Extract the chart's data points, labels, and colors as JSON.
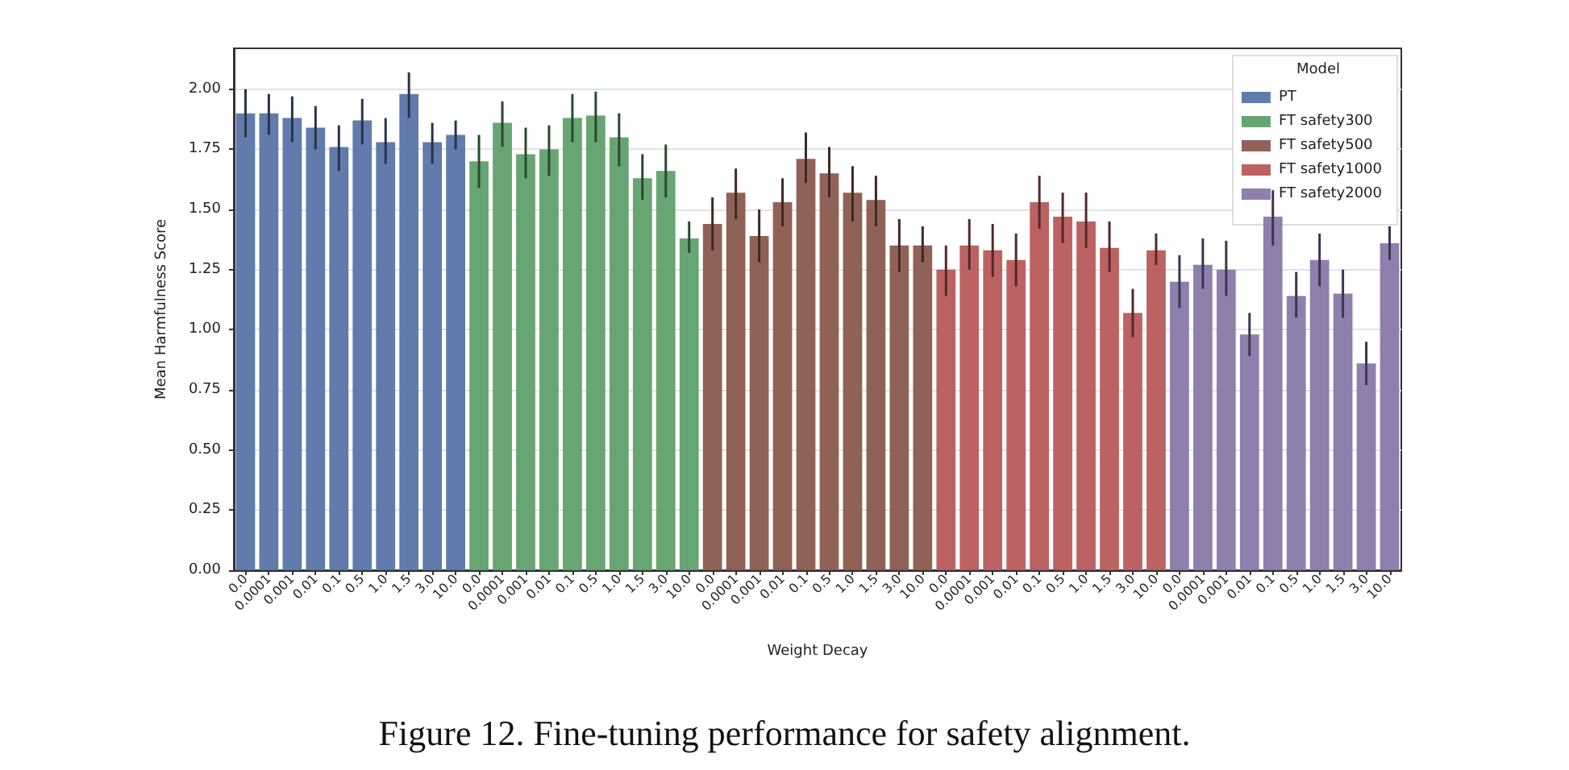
{
  "chart_data": {
    "type": "bar",
    "xlabel": "Weight Decay",
    "ylabel": "Mean Harmfulness Score",
    "legend_title": "Model",
    "legend": "top right",
    "grid": "y",
    "categories": [
      "0.0",
      "0.0001",
      "0.001",
      "0.01",
      "0.1",
      "0.5",
      "1.0",
      "1.5",
      "3.0",
      "10.0",
      "0.0",
      "0.0001",
      "0.001",
      "0.01",
      "0.1",
      "0.5",
      "1.0",
      "1.5",
      "3.0",
      "10.0",
      "0.0",
      "0.0001",
      "0.001",
      "0.01",
      "0.1",
      "0.5",
      "1.0",
      "1.5",
      "3.0",
      "10.0",
      "0.0",
      "0.0001",
      "0.001",
      "0.01",
      "0.1",
      "0.5",
      "1.0",
      "1.5",
      "3.0",
      "10.0",
      "0.0",
      "0.0001",
      "0.001",
      "0.01",
      "0.1",
      "0.5",
      "1.0",
      "1.5",
      "3.0",
      "10.0"
    ],
    "ylim": [
      0,
      2.17
    ],
    "yticks": [
      {
        "value": 0,
        "label": "0.00"
      },
      {
        "value": 0.25,
        "label": "0.25"
      },
      {
        "value": 0.5,
        "label": "0.50"
      },
      {
        "value": 0.75,
        "label": "0.75"
      },
      {
        "value": 1,
        "label": "1.00"
      },
      {
        "value": 1.25,
        "label": "1.25"
      },
      {
        "value": 1.5,
        "label": "1.50"
      },
      {
        "value": 1.75,
        "label": "1.75"
      },
      {
        "value": 2,
        "label": "2.00"
      }
    ],
    "series": [
      {
        "name": "PT",
        "color": "#5874a8",
        "values": [
          1.9,
          1.9,
          1.88,
          1.84,
          1.76,
          1.87,
          1.78,
          1.98,
          1.78,
          1.81,
          null,
          null,
          null,
          null,
          null,
          null,
          null,
          null,
          null,
          null,
          null,
          null,
          null,
          null,
          null,
          null,
          null,
          null,
          null,
          null,
          null,
          null,
          null,
          null,
          null,
          null,
          null,
          null,
          null,
          null,
          null,
          null,
          null,
          null,
          null,
          null,
          null,
          null,
          null,
          null
        ],
        "errors": [
          [
            1.8,
            2.0
          ],
          [
            1.81,
            1.98
          ],
          [
            1.78,
            1.97
          ],
          [
            1.75,
            1.93
          ],
          [
            1.66,
            1.85
          ],
          [
            1.77,
            1.96
          ],
          [
            1.69,
            1.88
          ],
          [
            1.88,
            2.07
          ],
          [
            1.69,
            1.86
          ],
          [
            1.75,
            1.87
          ],
          null,
          null,
          null,
          null,
          null,
          null,
          null,
          null,
          null,
          null,
          null,
          null,
          null,
          null,
          null,
          null,
          null,
          null,
          null,
          null,
          null,
          null,
          null,
          null,
          null,
          null,
          null,
          null,
          null,
          null,
          null,
          null,
          null,
          null,
          null,
          null,
          null,
          null,
          null,
          null
        ]
      },
      {
        "name": "FT safety300",
        "color": "#5fa06a",
        "values": [
          null,
          null,
          null,
          null,
          null,
          null,
          null,
          null,
          null,
          null,
          1.7,
          1.86,
          1.73,
          1.75,
          1.88,
          1.89,
          1.8,
          1.63,
          1.66,
          1.38,
          null,
          null,
          null,
          null,
          null,
          null,
          null,
          null,
          null,
          null,
          null,
          null,
          null,
          null,
          null,
          null,
          null,
          null,
          null,
          null,
          null,
          null,
          null,
          null,
          null,
          null,
          null,
          null,
          null,
          null
        ],
        "errors": [
          null,
          null,
          null,
          null,
          null,
          null,
          null,
          null,
          null,
          null,
          [
            1.59,
            1.81
          ],
          [
            1.76,
            1.95
          ],
          [
            1.63,
            1.84
          ],
          [
            1.64,
            1.85
          ],
          [
            1.78,
            1.98
          ],
          [
            1.78,
            1.99
          ],
          [
            1.68,
            1.9
          ],
          [
            1.54,
            1.73
          ],
          [
            1.55,
            1.77
          ],
          [
            1.32,
            1.45
          ],
          null,
          null,
          null,
          null,
          null,
          null,
          null,
          null,
          null,
          null,
          null,
          null,
          null,
          null,
          null,
          null,
          null,
          null,
          null,
          null,
          null,
          null,
          null,
          null,
          null,
          null,
          null,
          null,
          null,
          null
        ]
      },
      {
        "name": "FT safety500",
        "color": "#8a5a4e",
        "values": [
          null,
          null,
          null,
          null,
          null,
          null,
          null,
          null,
          null,
          null,
          null,
          null,
          null,
          null,
          null,
          null,
          null,
          null,
          null,
          null,
          1.44,
          1.57,
          1.39,
          1.53,
          1.71,
          1.65,
          1.57,
          1.54,
          1.35,
          1.35,
          null,
          null,
          null,
          null,
          null,
          null,
          null,
          null,
          null,
          null,
          null,
          null,
          null,
          null,
          null,
          null,
          null,
          null,
          null,
          null
        ],
        "errors": [
          null,
          null,
          null,
          null,
          null,
          null,
          null,
          null,
          null,
          null,
          null,
          null,
          null,
          null,
          null,
          null,
          null,
          null,
          null,
          null,
          [
            1.33,
            1.55
          ],
          [
            1.46,
            1.67
          ],
          [
            1.28,
            1.5
          ],
          [
            1.43,
            1.63
          ],
          [
            1.61,
            1.82
          ],
          [
            1.55,
            1.76
          ],
          [
            1.45,
            1.68
          ],
          [
            1.43,
            1.64
          ],
          [
            1.24,
            1.46
          ],
          [
            1.28,
            1.43
          ],
          null,
          null,
          null,
          null,
          null,
          null,
          null,
          null,
          null,
          null,
          null,
          null,
          null,
          null,
          null,
          null,
          null,
          null,
          null,
          null
        ]
      },
      {
        "name": "FT safety1000",
        "color": "#b85a5a",
        "values": [
          null,
          null,
          null,
          null,
          null,
          null,
          null,
          null,
          null,
          null,
          null,
          null,
          null,
          null,
          null,
          null,
          null,
          null,
          null,
          null,
          null,
          null,
          null,
          null,
          null,
          null,
          null,
          null,
          null,
          null,
          1.25,
          1.35,
          1.33,
          1.29,
          1.53,
          1.47,
          1.45,
          1.34,
          1.07,
          1.33,
          null,
          null,
          null,
          null,
          null,
          null,
          null,
          null,
          null,
          null
        ],
        "errors": [
          null,
          null,
          null,
          null,
          null,
          null,
          null,
          null,
          null,
          null,
          null,
          null,
          null,
          null,
          null,
          null,
          null,
          null,
          null,
          null,
          null,
          null,
          null,
          null,
          null,
          null,
          null,
          null,
          null,
          null,
          [
            1.14,
            1.35
          ],
          [
            1.25,
            1.46
          ],
          [
            1.22,
            1.44
          ],
          [
            1.18,
            1.4
          ],
          [
            1.42,
            1.64
          ],
          [
            1.36,
            1.57
          ],
          [
            1.34,
            1.57
          ],
          [
            1.24,
            1.45
          ],
          [
            0.97,
            1.17
          ],
          [
            1.27,
            1.4
          ],
          null,
          null,
          null,
          null,
          null,
          null,
          null,
          null,
          null,
          null
        ]
      },
      {
        "name": "FT safety2000",
        "color": "#8878a8",
        "values": [
          null,
          null,
          null,
          null,
          null,
          null,
          null,
          null,
          null,
          null,
          null,
          null,
          null,
          null,
          null,
          null,
          null,
          null,
          null,
          null,
          null,
          null,
          null,
          null,
          null,
          null,
          null,
          null,
          null,
          null,
          null,
          null,
          null,
          null,
          null,
          null,
          null,
          null,
          null,
          null,
          1.2,
          1.27,
          1.25,
          0.98,
          1.47,
          1.14,
          1.29,
          1.15,
          0.86,
          1.36
        ],
        "errors": [
          null,
          null,
          null,
          null,
          null,
          null,
          null,
          null,
          null,
          null,
          null,
          null,
          null,
          null,
          null,
          null,
          null,
          null,
          null,
          null,
          null,
          null,
          null,
          null,
          null,
          null,
          null,
          null,
          null,
          null,
          null,
          null,
          null,
          null,
          null,
          null,
          null,
          null,
          null,
          null,
          [
            1.09,
            1.31
          ],
          [
            1.17,
            1.38
          ],
          [
            1.14,
            1.37
          ],
          [
            0.89,
            1.07
          ],
          [
            1.35,
            1.58
          ],
          [
            1.05,
            1.24
          ],
          [
            1.18,
            1.4
          ],
          [
            1.05,
            1.25
          ],
          [
            0.77,
            0.95
          ],
          [
            1.29,
            1.43
          ]
        ]
      }
    ],
    "annotations": [
      "Figure 12. Fine-tuning performance for safety alignment."
    ]
  }
}
